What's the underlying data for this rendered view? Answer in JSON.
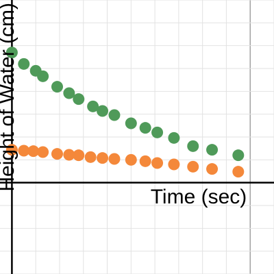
{
  "chart_data": {
    "type": "scatter",
    "xlabel": "Time (sec)",
    "ylabel": "Height of Water (cm)",
    "xlim": [
      -0.25,
      5.5
    ],
    "ylim": [
      -2,
      4
    ],
    "grid": true,
    "colors": {
      "green": "#4f9a59",
      "orange": "#f4883a",
      "minor_grid": "#e2e2e2",
      "major_grid": "#8a8a8a",
      "axis": "#000000"
    },
    "series": [
      {
        "color": "green",
        "points": [
          {
            "x": 0.0,
            "y": 2.85
          },
          {
            "x": 0.25,
            "y": 2.6
          },
          {
            "x": 0.5,
            "y": 2.45
          },
          {
            "x": 0.65,
            "y": 2.33
          },
          {
            "x": 0.95,
            "y": 2.1
          },
          {
            "x": 1.2,
            "y": 1.96
          },
          {
            "x": 1.4,
            "y": 1.83
          },
          {
            "x": 1.7,
            "y": 1.67
          },
          {
            "x": 1.9,
            "y": 1.57
          },
          {
            "x": 2.15,
            "y": 1.48
          },
          {
            "x": 2.5,
            "y": 1.3
          },
          {
            "x": 2.8,
            "y": 1.2
          },
          {
            "x": 3.05,
            "y": 1.1
          },
          {
            "x": 3.4,
            "y": 0.98
          },
          {
            "x": 3.8,
            "y": 0.8
          },
          {
            "x": 4.2,
            "y": 0.72
          },
          {
            "x": 4.75,
            "y": 0.6
          }
        ]
      },
      {
        "color": "orange",
        "points": [
          {
            "x": 0.0,
            "y": 0.72
          },
          {
            "x": 0.25,
            "y": 0.7
          },
          {
            "x": 0.45,
            "y": 0.69
          },
          {
            "x": 0.65,
            "y": 0.67
          },
          {
            "x": 0.95,
            "y": 0.63
          },
          {
            "x": 1.2,
            "y": 0.61
          },
          {
            "x": 1.4,
            "y": 0.6
          },
          {
            "x": 1.65,
            "y": 0.56
          },
          {
            "x": 1.9,
            "y": 0.54
          },
          {
            "x": 2.15,
            "y": 0.52
          },
          {
            "x": 2.5,
            "y": 0.5
          },
          {
            "x": 2.8,
            "y": 0.47
          },
          {
            "x": 3.05,
            "y": 0.43
          },
          {
            "x": 3.4,
            "y": 0.4
          },
          {
            "x": 3.8,
            "y": 0.35
          },
          {
            "x": 4.2,
            "y": 0.3
          },
          {
            "x": 4.75,
            "y": 0.24
          }
        ]
      }
    ]
  }
}
